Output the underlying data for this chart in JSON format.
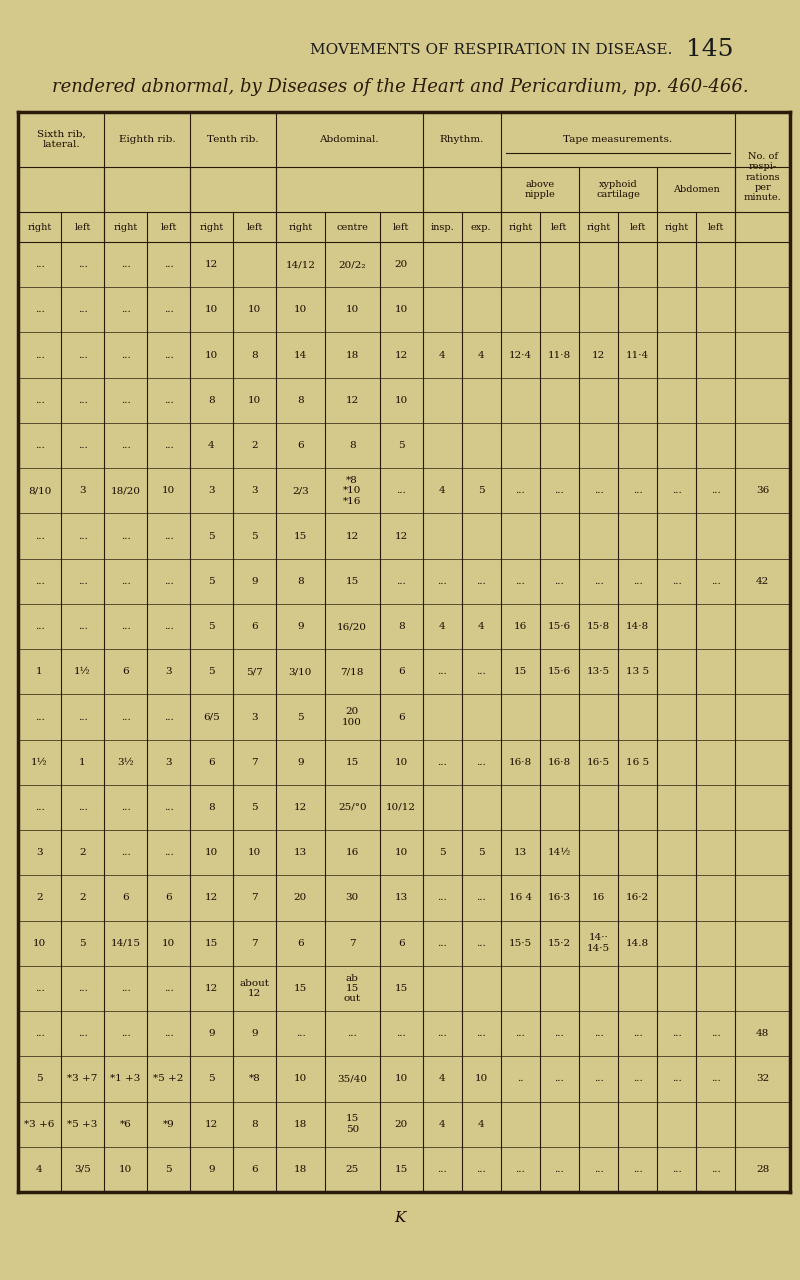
{
  "title_line1": "MOVEMENTS OF RESPIRATION IN DISEASE.",
  "title_page": "145",
  "subtitle": "rendered abnormal, by Diseases of the Heart and Pericardium, pp. 460-466.",
  "bg_color": "#d4c98a",
  "col_headers": [
    "right",
    "left",
    "right",
    "left",
    "right",
    "left",
    "right",
    "centre",
    "left",
    "insp.",
    "exp.",
    "right",
    "left",
    "right",
    "left",
    "right",
    "left",
    ""
  ],
  "rows": [
    [
      "...",
      "...",
      "...",
      "...",
      "12",
      "",
      "14/12",
      "20/2₂",
      "20",
      "",
      "",
      "",
      "",
      "",
      "",
      "",
      "",
      ""
    ],
    [
      "...",
      "...",
      "...",
      "...",
      "10",
      "10",
      "10",
      "10",
      "10",
      "",
      "",
      "",
      "",
      "",
      "",
      "",
      "",
      ""
    ],
    [
      "...",
      "...",
      "...",
      "...",
      "10",
      "8",
      "14",
      "18",
      "12",
      "4",
      "4",
      "12·4",
      "11·8",
      "12",
      "11·4",
      "",
      "",
      ""
    ],
    [
      "...",
      "...",
      "...",
      "...",
      "8",
      "10",
      "8",
      "12",
      "10",
      "",
      "",
      "",
      "",
      "",
      "",
      "",
      "",
      ""
    ],
    [
      "...",
      "...",
      "...",
      "...",
      "4",
      "2",
      "6",
      "8",
      "5",
      "",
      "",
      "",
      "",
      "",
      "",
      "",
      "",
      ""
    ],
    [
      "8/10",
      "3",
      "18/20",
      "10",
      "3",
      "3",
      "2/3",
      "*8\n*10\n*16",
      "...",
      "4",
      "5",
      "...",
      "...",
      "...",
      "...",
      "...",
      "...",
      "36"
    ],
    [
      "...",
      "...",
      "...",
      "...",
      "5",
      "5",
      "15",
      "12",
      "12",
      "",
      "",
      "",
      "",
      "",
      "",
      "",
      "",
      ""
    ],
    [
      "...",
      "...",
      "...",
      "...",
      "5",
      "9",
      "8",
      "15",
      "...",
      "...",
      "...",
      "...",
      "...",
      "...",
      "...",
      "...",
      "...",
      "42"
    ],
    [
      "...",
      "...",
      "...",
      "...",
      "5",
      "6",
      "9",
      "16/20",
      "8",
      "4",
      "4",
      "16",
      "15·6",
      "15·8",
      "14·8",
      "",
      "",
      ""
    ],
    [
      "1",
      "1½",
      "6",
      "3",
      "5",
      "5/7",
      "3/10",
      "7/18",
      "6",
      "...",
      "...",
      "15",
      "15·6",
      "13·5",
      "13 5",
      "",
      "",
      ""
    ],
    [
      "...",
      "...",
      "...",
      "...",
      "6/5",
      "3",
      "5",
      "20\n100",
      "6",
      "",
      "",
      "",
      "",
      "",
      "",
      "",
      "",
      ""
    ],
    [
      "1½",
      "1",
      "3½",
      "3",
      "6",
      "7",
      "9",
      "15",
      "10",
      "...",
      "...",
      "16·8",
      "16·8",
      "16·5",
      "16 5",
      "",
      "",
      ""
    ],
    [
      "...",
      "...",
      "...",
      "...",
      "8",
      "5",
      "12",
      "25/°0",
      "10/12",
      "",
      "",
      "",
      "",
      "",
      "",
      "",
      "",
      ""
    ],
    [
      "3",
      "2",
      "...",
      "...",
      "10",
      "10",
      "13",
      "16",
      "10",
      "5",
      "5",
      "13",
      "14½",
      "",
      "",
      "",
      "",
      ""
    ],
    [
      "2",
      "2",
      "6",
      "6",
      "12",
      "7",
      "20",
      "30",
      "13",
      "...",
      "...",
      "16 4",
      "16·3",
      "16",
      "16·2",
      "",
      "",
      ""
    ],
    [
      "10",
      "5",
      "14/15",
      "10",
      "15",
      "7",
      "6",
      "7",
      "6",
      "...",
      "...",
      "15·5",
      "15·2",
      "14··\n14·5",
      "14.8",
      "",
      "",
      ""
    ],
    [
      "...",
      "...",
      "...",
      "...",
      "12",
      "about\n12",
      "15",
      "ab\n15\nout",
      "15",
      "",
      "",
      "",
      "",
      "",
      "",
      "",
      "",
      ""
    ],
    [
      "...",
      "...",
      "...",
      "...",
      "9",
      "9",
      "...",
      "...",
      "...",
      "...",
      "...",
      "...",
      "...",
      "...",
      "...",
      "...",
      "...",
      "48"
    ],
    [
      "5",
      "*3 +7",
      "*1 +3",
      "*5 +2",
      "5",
      "*8",
      "10",
      "35/40",
      "10",
      "4",
      "10",
      "..",
      "...",
      "...",
      "...",
      "...",
      "...",
      "32"
    ],
    [
      "*3 +6",
      "*5 +3",
      "*6",
      "*9",
      "12",
      "8",
      "18",
      "15\n50",
      "20",
      "4",
      "4",
      "",
      "",
      "",
      "",
      "",
      "",
      ""
    ],
    [
      "4",
      "3/5",
      "10",
      "5",
      "9",
      "6",
      "18",
      "25",
      "15",
      "...",
      "...",
      "...",
      "...",
      "...",
      "...",
      "...",
      "...",
      "28"
    ]
  ],
  "footer": "K"
}
